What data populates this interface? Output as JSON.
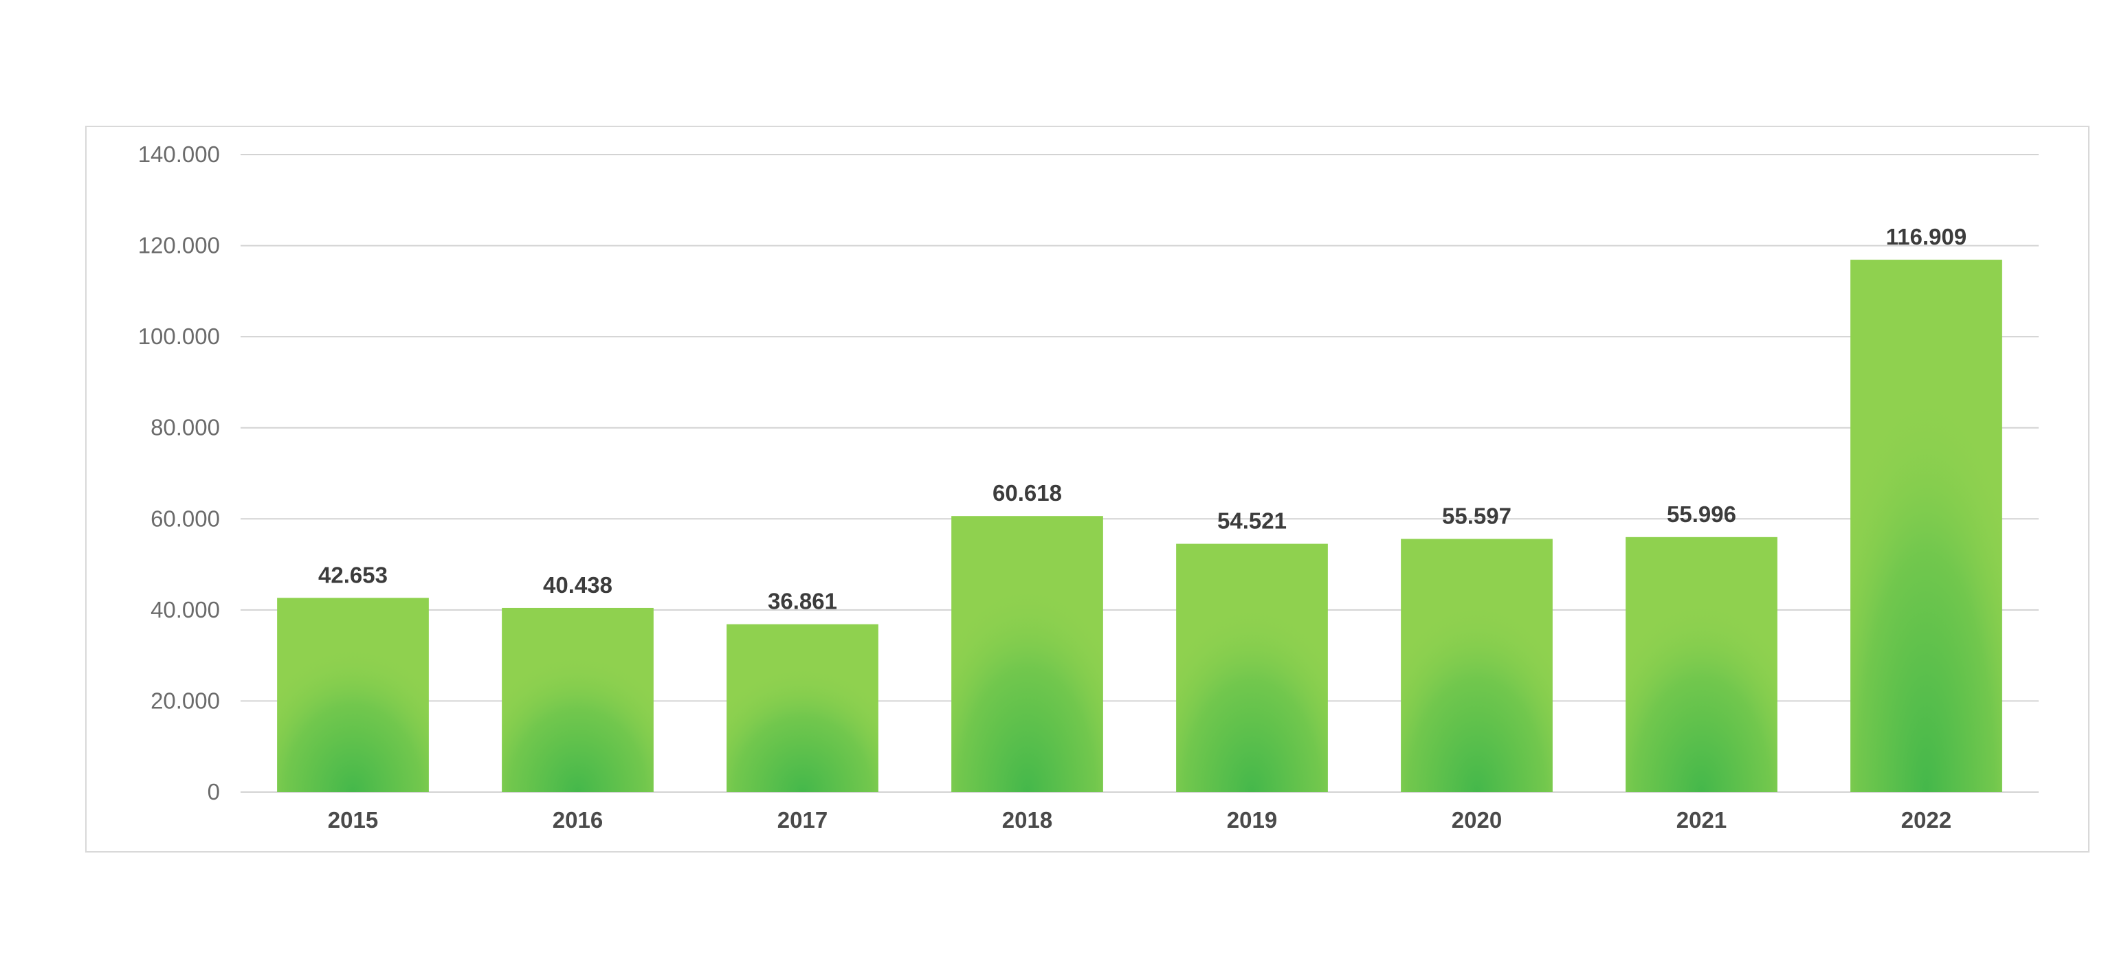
{
  "chart_data": {
    "type": "bar",
    "categories": [
      "2015",
      "2016",
      "2017",
      "2018",
      "2019",
      "2020",
      "2021",
      "2022"
    ],
    "values": [
      42653,
      40438,
      36861,
      60618,
      54521,
      55597,
      55996,
      116909
    ],
    "value_labels": [
      "42.653",
      "40.438",
      "36.861",
      "60.618",
      "54.521",
      "55.597",
      "55.996",
      "116.909"
    ],
    "y_ticks": [
      0,
      20000,
      40000,
      60000,
      80000,
      100000,
      120000,
      140000
    ],
    "y_tick_labels": [
      "0",
      "20.000",
      "40.000",
      "60.000",
      "80.000",
      "100.000",
      "120.000",
      "140.000"
    ],
    "ylim": [
      0,
      140000
    ],
    "title": "",
    "xlabel": "",
    "ylabel": "",
    "grid": true,
    "legend": "none",
    "colors": {
      "bar_top": "#8fd14f",
      "bar_bottom": "#3cb54a",
      "grid": "#d3d3d3",
      "frame": "#d9d9d9"
    }
  }
}
